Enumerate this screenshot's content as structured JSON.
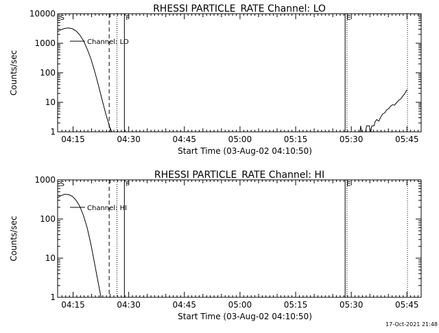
{
  "footer": {
    "timestamp": "17-Oct-2021 21:48"
  },
  "chart_data": [
    {
      "type": "line",
      "title": "RHESSI PARTICLE_RATE Channel: LO",
      "xlabel": "Start Time (03-Aug-02 04:10:50)",
      "ylabel": "Counts/sec",
      "y_scale": "log",
      "ylim": [
        1,
        10000
      ],
      "y_ticks": [
        "1",
        "10",
        "100",
        "1000",
        "10000"
      ],
      "xlim_minutes_after_0410": [
        0,
        98
      ],
      "x_ticks": [
        "04:15",
        "04:30",
        "04:45",
        "05:00",
        "05:15",
        "05:30",
        "05:45"
      ],
      "legend": {
        "entries": [
          "Channel: LO"
        ],
        "placement": "top-left"
      },
      "markers": [
        {
          "label": "S",
          "time_min": 0.3,
          "style": "none"
        },
        {
          "time_min": 13.9,
          "style": "dashed"
        },
        {
          "time_min": 16.0,
          "style": "dotted"
        },
        {
          "label": "F",
          "time_min": 18.0,
          "style": "solid"
        },
        {
          "label": "E",
          "time_min": 77.5,
          "style": "solid"
        },
        {
          "time_min": 78.0,
          "style": "dotted"
        },
        {
          "time_min": 94.3,
          "style": "dotted"
        }
      ],
      "series": [
        {
          "segments": [
            [
              [
                0,
                2500
              ],
              [
                1,
                2900
              ],
              [
                2,
                3200
              ],
              [
                3,
                3300
              ],
              [
                4,
                3100
              ],
              [
                5,
                2600
              ],
              [
                6,
                1900
              ],
              [
                7,
                1200
              ],
              [
                8,
                620
              ],
              [
                9,
                290
              ],
              [
                10,
                110
              ],
              [
                11,
                38
              ],
              [
                12,
                12
              ],
              [
                13,
                4
              ],
              [
                14,
                1.5
              ],
              [
                14.6,
                1
              ]
            ],
            [
              [
                81.5,
                1
              ],
              [
                81.7,
                1.6
              ],
              [
                81.9,
                1
              ]
            ],
            [
              [
                83,
                1
              ],
              [
                83.3,
                1.6
              ],
              [
                84,
                1.6
              ],
              [
                84.4,
                1
              ],
              [
                84.7,
                1.6
              ],
              [
                85.3,
                1.6
              ],
              [
                85.6,
                2.2
              ],
              [
                86,
                2.6
              ],
              [
                86.6,
                2.3
              ],
              [
                87,
                3
              ],
              [
                87.6,
                4
              ],
              [
                88.2,
                4.4
              ],
              [
                88.7,
                5.5
              ],
              [
                89.3,
                6.2
              ],
              [
                89.8,
                7.5
              ],
              [
                90.3,
                8.3
              ],
              [
                90.8,
                8
              ],
              [
                91.3,
                9.5
              ],
              [
                92,
                12
              ],
              [
                92.5,
                13
              ],
              [
                93,
                16
              ],
              [
                93.5,
                19
              ],
              [
                94.2,
                27
              ]
            ]
          ]
        }
      ]
    },
    {
      "type": "line",
      "title": "RHESSI PARTICLE_RATE Channel: HI",
      "xlabel": "Start Time (03-Aug-02 04:10:50)",
      "ylabel": "Counts/sec",
      "y_scale": "log",
      "ylim": [
        1,
        1000
      ],
      "y_ticks": [
        "1",
        "10",
        "100",
        "1000"
      ],
      "xlim_minutes_after_0410": [
        0,
        98
      ],
      "x_ticks": [
        "04:15",
        "04:30",
        "04:45",
        "05:00",
        "05:15",
        "05:30",
        "05:45"
      ],
      "legend": {
        "entries": [
          "Channel: HI"
        ],
        "placement": "top-left"
      },
      "markers": [
        {
          "label": "S",
          "time_min": 0.3,
          "style": "none"
        },
        {
          "time_min": 13.9,
          "style": "dashed"
        },
        {
          "time_min": 16.0,
          "style": "dotted"
        },
        {
          "label": "F",
          "time_min": 18.0,
          "style": "solid"
        },
        {
          "label": "E",
          "time_min": 77.5,
          "style": "solid"
        },
        {
          "time_min": 78.0,
          "style": "dotted"
        },
        {
          "time_min": 94.3,
          "style": "dotted"
        }
      ],
      "series": [
        {
          "segments": [
            [
              [
                0,
                350
              ],
              [
                1,
                400
              ],
              [
                2,
                430
              ],
              [
                3,
                420
              ],
              [
                4,
                380
              ],
              [
                5,
                300
              ],
              [
                6,
                210
              ],
              [
                7,
                120
              ],
              [
                8,
                58
              ],
              [
                9,
                22
              ],
              [
                10,
                7
              ],
              [
                11,
                2.2
              ],
              [
                11.7,
                1
              ]
            ]
          ]
        }
      ]
    }
  ]
}
